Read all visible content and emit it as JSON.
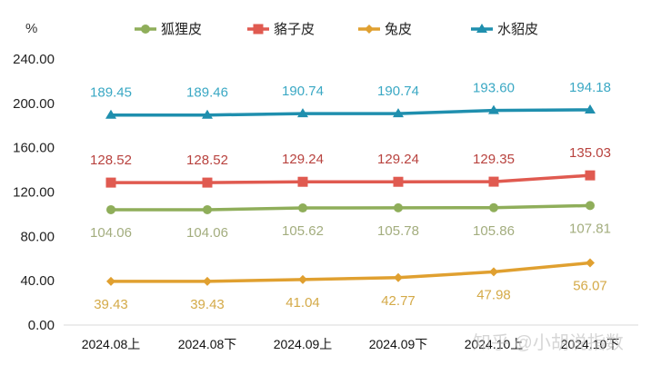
{
  "chart_data": {
    "type": "line",
    "title": "",
    "unit_label": "%",
    "xlabel": "",
    "ylabel": "%",
    "ylim": [
      0,
      240
    ],
    "yticks": [
      "0.00",
      "40.00",
      "80.00",
      "120.00",
      "160.00",
      "200.00",
      "240.00"
    ],
    "grid": false,
    "legend_position": "top",
    "categories": [
      "2024.08上",
      "2024.08下",
      "2024.09上",
      "2024.09下",
      "2024.10上",
      "2024.10下"
    ],
    "series": [
      {
        "name": "狐狸皮",
        "color": "#8fae5a",
        "label_color": "#a3ad7e",
        "marker": "circle",
        "label_pos": "below",
        "values": [
          104.06,
          104.06,
          105.62,
          105.78,
          105.86,
          107.81
        ]
      },
      {
        "name": "貉子皮",
        "color": "#e05a50",
        "label_color": "#b8423e",
        "marker": "square",
        "label_pos": "above",
        "values": [
          128.52,
          128.52,
          129.24,
          129.24,
          129.35,
          135.03
        ]
      },
      {
        "name": "兔皮",
        "color": "#e0a030",
        "label_color": "#d4aa48",
        "marker": "diamond",
        "label_pos": "below",
        "values": [
          39.43,
          39.43,
          41.04,
          42.77,
          47.98,
          56.07
        ]
      },
      {
        "name": "水貂皮",
        "color": "#1f8fae",
        "label_color": "#3aa8c4",
        "marker": "triangle",
        "label_pos": "above",
        "values": [
          189.45,
          189.46,
          190.74,
          190.74,
          193.6,
          194.18
        ]
      }
    ]
  },
  "watermark": "知乎 @小胡说指数"
}
